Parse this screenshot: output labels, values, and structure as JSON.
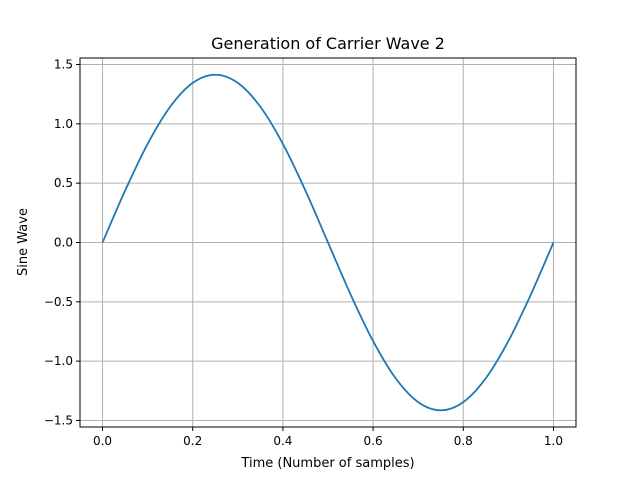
{
  "chart_data": {
    "type": "line",
    "title": "Generation of Carrier Wave 2",
    "xlabel": "Time (Number of samples)",
    "ylabel": "Sine Wave",
    "xlim": [
      -0.05,
      1.05
    ],
    "ylim": [
      -1.555,
      1.555
    ],
    "xticks": [
      0.0,
      0.2,
      0.4,
      0.6,
      0.8,
      1.0
    ],
    "xtick_labels": [
      "0.0",
      "0.2",
      "0.4",
      "0.6",
      "0.8",
      "1.0"
    ],
    "yticks": [
      -1.5,
      -1.0,
      -0.5,
      0.0,
      0.5,
      1.0,
      1.5
    ],
    "ytick_labels": [
      "−1.5",
      "−1.0",
      "−0.5",
      "0.0",
      "0.5",
      "1.0",
      "1.5"
    ],
    "grid": true,
    "series": [
      {
        "color": "#1f77b4",
        "x": [
          0.0,
          0.05,
          0.1,
          0.15,
          0.2,
          0.25,
          0.3,
          0.35,
          0.4,
          0.45,
          0.5,
          0.55,
          0.6,
          0.65,
          0.7,
          0.75,
          0.8,
          0.85,
          0.9,
          0.95,
          1.0
        ],
        "y": [
          0.0,
          0.437,
          0.831,
          1.144,
          1.345,
          1.414,
          1.345,
          1.144,
          0.831,
          0.437,
          0.0,
          -0.437,
          -0.831,
          -1.144,
          -1.345,
          -1.414,
          -1.345,
          -1.144,
          -0.831,
          -0.437,
          0.0
        ]
      }
    ]
  }
}
